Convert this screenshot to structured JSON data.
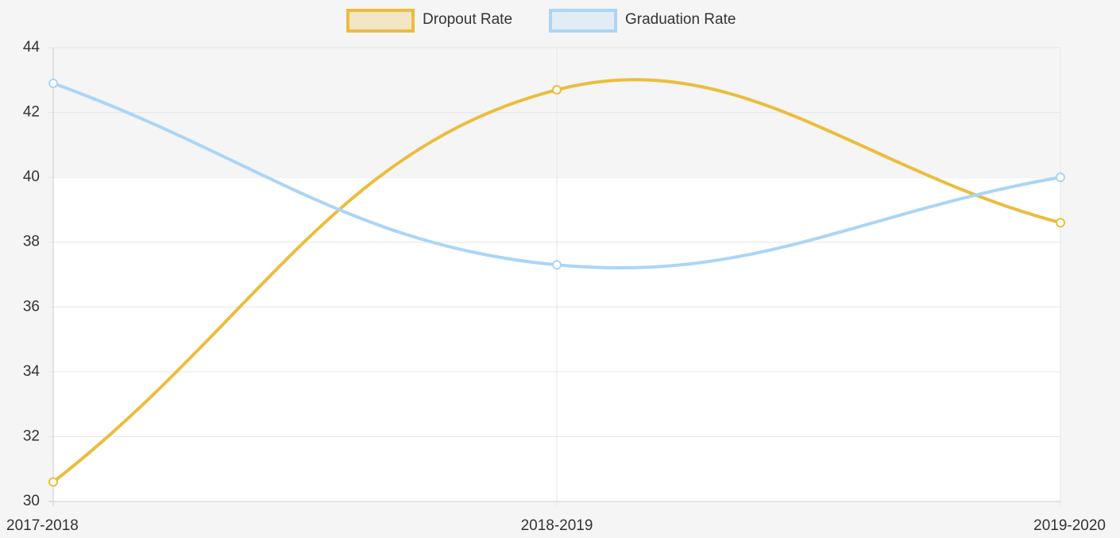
{
  "chart_data": {
    "type": "line",
    "categories": [
      "2017-2018",
      "2018-2019",
      "2019-2020"
    ],
    "series": [
      {
        "name": "Dropout Rate",
        "color": "#ebbd3e",
        "values": [
          30.6,
          42.7,
          38.6
        ]
      },
      {
        "name": "Graduation Rate",
        "color": "#abd5f6",
        "values": [
          42.9,
          37.3,
          40.0
        ]
      }
    ],
    "ylim": [
      30,
      44
    ],
    "yticks": [
      30,
      32,
      34,
      36,
      38,
      40,
      42,
      44
    ],
    "grid": true,
    "legend": "top"
  }
}
